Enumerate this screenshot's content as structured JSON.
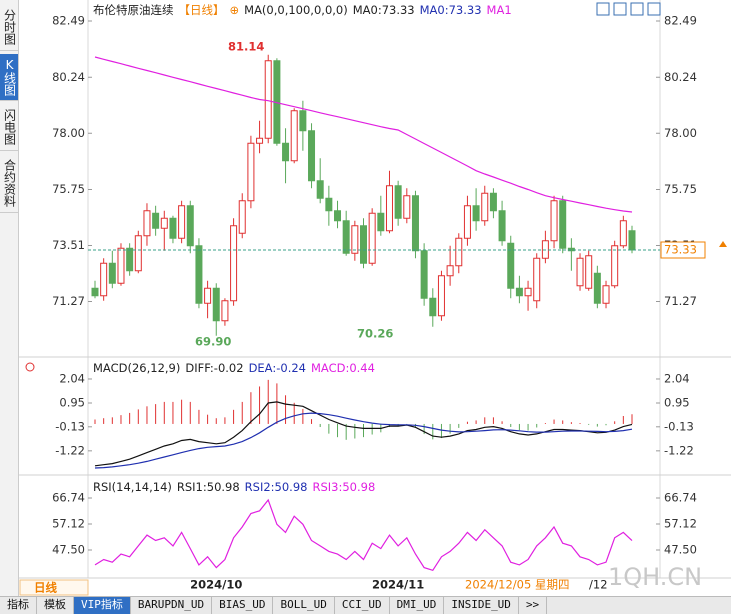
{
  "sidebar": [
    "分时图",
    "K线图",
    "闪电图",
    "合约资料"
  ],
  "tabs": [
    "指标",
    "模板",
    "VIP指标",
    "BARUPDN_UD",
    "BIAS_UD",
    "BOLL_UD",
    "CCI_UD",
    "DMI_UD",
    "INSIDE_UD",
    ">>"
  ],
  "period_label": "日线",
  "cursor_date": "2024/12/05 星期四",
  "cursor_tail": "/12",
  "watermark": "1QH.CN",
  "chart_data": [
    {
      "type": "candlestick",
      "header": [
        {
          "text": "布伦特原油连续",
          "color": "#222222"
        },
        {
          "text": "【日线】",
          "color": "#f08000"
        },
        {
          "text": "⊕",
          "color": "#f08000"
        },
        {
          "text": "MA(0,0,100,0,0,0)",
          "color": "#222222"
        },
        {
          "text": "MA0:73.33",
          "color": "#222222"
        },
        {
          "text": "MA0:73.33",
          "color": "#2030b0"
        },
        {
          "text": "MA1",
          "color": "#e020e0"
        }
      ],
      "categories": [
        null,
        null,
        null,
        null,
        null,
        null,
        null,
        null,
        null,
        null,
        null,
        null,
        null,
        null,
        "2024/10",
        null,
        null,
        null,
        null,
        null,
        null,
        null,
        null,
        null,
        null,
        null,
        null,
        null,
        null,
        null,
        null,
        null,
        null,
        null,
        null,
        "2024/11",
        null,
        null,
        null,
        null,
        null,
        null,
        null,
        null,
        null,
        null,
        null,
        null,
        null,
        null,
        null,
        null,
        null,
        null,
        null,
        null,
        null,
        null,
        null,
        null,
        null,
        null,
        null
      ],
      "candles": [
        [
          71.8,
          72.1,
          71.4,
          71.5
        ],
        [
          71.5,
          73.0,
          71.3,
          72.8
        ],
        [
          72.8,
          73.3,
          71.8,
          72.0
        ],
        [
          72.0,
          73.6,
          71.9,
          73.4
        ],
        [
          73.4,
          73.6,
          72.3,
          72.5
        ],
        [
          72.5,
          74.1,
          72.4,
          73.9
        ],
        [
          73.9,
          75.2,
          73.5,
          74.9
        ],
        [
          74.8,
          75.1,
          73.9,
          74.2
        ],
        [
          74.2,
          74.9,
          73.3,
          74.6
        ],
        [
          74.6,
          74.7,
          73.6,
          73.8
        ],
        [
          73.8,
          75.3,
          73.6,
          75.1
        ],
        [
          75.1,
          75.3,
          73.2,
          73.5
        ],
        [
          73.5,
          73.8,
          71.0,
          71.2
        ],
        [
          71.2,
          72.1,
          70.6,
          71.8
        ],
        [
          71.8,
          72.0,
          69.9,
          70.5
        ],
        [
          70.5,
          71.4,
          70.3,
          71.3
        ],
        [
          71.3,
          74.6,
          71.1,
          74.3
        ],
        [
          74.0,
          75.6,
          73.8,
          75.3
        ],
        [
          75.3,
          77.9,
          75.0,
          77.6
        ],
        [
          77.6,
          78.5,
          77.2,
          77.8
        ],
        [
          77.8,
          81.14,
          77.6,
          80.9
        ],
        [
          80.9,
          81.0,
          77.5,
          77.6
        ],
        [
          77.6,
          78.2,
          76.0,
          76.9
        ],
        [
          76.9,
          79.0,
          76.8,
          78.9
        ],
        [
          78.9,
          79.3,
          77.3,
          78.1
        ],
        [
          78.1,
          78.4,
          75.8,
          76.1
        ],
        [
          76.1,
          77.0,
          75.2,
          75.4
        ],
        [
          75.4,
          75.9,
          74.3,
          74.9
        ],
        [
          74.9,
          75.3,
          74.2,
          74.5
        ],
        [
          74.5,
          74.9,
          73.1,
          73.2
        ],
        [
          73.2,
          74.5,
          72.9,
          74.3
        ],
        [
          74.3,
          74.6,
          72.6,
          72.8
        ],
        [
          72.8,
          75.0,
          72.7,
          74.8
        ],
        [
          74.8,
          75.5,
          73.9,
          74.1
        ],
        [
          74.1,
          76.5,
          74.0,
          75.9
        ],
        [
          75.9,
          76.1,
          74.3,
          74.6
        ],
        [
          74.6,
          75.8,
          74.4,
          75.5
        ],
        [
          75.5,
          75.7,
          73.0,
          73.3
        ],
        [
          73.3,
          73.6,
          71.1,
          71.4
        ],
        [
          71.4,
          71.8,
          70.26,
          70.7
        ],
        [
          70.7,
          72.5,
          70.5,
          72.3
        ],
        [
          72.3,
          73.5,
          71.9,
          72.7
        ],
        [
          72.7,
          74.0,
          72.4,
          73.8
        ],
        [
          73.8,
          75.5,
          73.5,
          75.1
        ],
        [
          75.1,
          75.8,
          74.1,
          74.5
        ],
        [
          74.5,
          75.9,
          74.3,
          75.6
        ],
        [
          75.6,
          75.8,
          74.6,
          74.9
        ],
        [
          74.9,
          75.3,
          73.5,
          73.7
        ],
        [
          73.6,
          73.9,
          71.4,
          71.8
        ],
        [
          71.8,
          72.3,
          71.2,
          71.5
        ],
        [
          71.5,
          72.1,
          70.9,
          71.8
        ],
        [
          71.3,
          73.2,
          71.0,
          73.0
        ],
        [
          73.0,
          74.1,
          72.8,
          73.7
        ],
        [
          73.7,
          75.5,
          73.4,
          75.3
        ],
        [
          75.3,
          75.5,
          73.2,
          73.4
        ],
        [
          73.4,
          73.8,
          72.5,
          73.3
        ],
        [
          71.9,
          73.2,
          71.7,
          73.0
        ],
        [
          71.8,
          73.3,
          71.7,
          73.1
        ],
        [
          72.4,
          72.7,
          71.0,
          71.2
        ],
        [
          71.2,
          72.1,
          71.0,
          71.9
        ],
        [
          71.9,
          73.7,
          71.8,
          73.5
        ],
        [
          73.5,
          74.7,
          73.4,
          74.5
        ],
        [
          74.1,
          74.3,
          73.2,
          73.33
        ]
      ],
      "up_color": "#e03030",
      "down_color": "#5aa85a",
      "series": [
        {
          "color": "#e020e0",
          "values": [
            81.05,
            80.96,
            80.87,
            80.78,
            80.69,
            80.6,
            80.51,
            80.42,
            80.33,
            80.24,
            80.15,
            80.06,
            79.97,
            79.88,
            79.79,
            79.7,
            79.61,
            79.52,
            79.43,
            79.35,
            79.3,
            79.22,
            79.14,
            79.06,
            78.98,
            78.9,
            78.82,
            78.74,
            78.66,
            78.58,
            78.5,
            78.42,
            78.34,
            78.26,
            78.19,
            78.13,
            77.95,
            77.77,
            77.59,
            77.41,
            77.23,
            77.05,
            76.87,
            76.69,
            76.5,
            76.37,
            76.25,
            76.12,
            76.0,
            75.87,
            75.75,
            75.62,
            75.5,
            75.42,
            75.35,
            75.28,
            75.21,
            75.14,
            75.07,
            75.0,
            74.94,
            74.89,
            74.85
          ]
        }
      ],
      "last_price": 73.33,
      "last_price_color": "#f08000",
      "annotations": [
        "81.14",
        "69.90",
        "70.26"
      ],
      "ylim": [
        69.13,
        82.85
      ],
      "yticks": [
        82.49,
        80.24,
        {
          "value": 78,
          "label": "78.00"
        },
        75.75,
        73.51,
        71.27
      ],
      "grid": false
    },
    {
      "type": "macd",
      "header": [
        {
          "text": "MACD(26,12,9)",
          "color": "#222222"
        },
        {
          "text": "DIFF:-0.02",
          "color": "#222222"
        },
        {
          "text": "DEA:-0.24",
          "color": "#2030b0"
        },
        {
          "text": "MACD:0.44",
          "color": "#e020e0"
        }
      ],
      "series": [
        {
          "color": "#111111",
          "values": [
            -1.9,
            -1.85,
            -1.8,
            -1.7,
            -1.6,
            -1.45,
            -1.3,
            -1.15,
            -1.0,
            -0.9,
            -0.75,
            -0.7,
            -0.8,
            -0.85,
            -0.9,
            -0.85,
            -0.6,
            -0.3,
            0.1,
            0.45,
            0.95,
            1.0,
            0.9,
            0.85,
            0.8,
            0.6,
            0.4,
            0.2,
            0.05,
            -0.1,
            -0.15,
            -0.2,
            -0.2,
            -0.2,
            -0.1,
            -0.1,
            -0.05,
            -0.15,
            -0.35,
            -0.55,
            -0.6,
            -0.55,
            -0.45,
            -0.3,
            -0.25,
            -0.15,
            -0.12,
            -0.2,
            -0.35,
            -0.45,
            -0.5,
            -0.45,
            -0.35,
            -0.25,
            -0.25,
            -0.28,
            -0.3,
            -0.35,
            -0.4,
            -0.38,
            -0.28,
            -0.12,
            -0.02
          ]
        },
        {
          "color": "#2030b0",
          "values": [
            -2.0,
            -1.98,
            -1.95,
            -1.9,
            -1.85,
            -1.78,
            -1.7,
            -1.6,
            -1.5,
            -1.4,
            -1.3,
            -1.2,
            -1.12,
            -1.06,
            -1.03,
            -1.0,
            -0.92,
            -0.8,
            -0.62,
            -0.4,
            -0.15,
            0.08,
            0.25,
            0.37,
            0.46,
            0.49,
            0.47,
            0.42,
            0.35,
            0.26,
            0.18,
            0.1,
            0.04,
            -0.01,
            -0.03,
            -0.04,
            -0.04,
            -0.06,
            -0.12,
            -0.2,
            -0.28,
            -0.33,
            -0.36,
            -0.35,
            -0.33,
            -0.3,
            -0.27,
            -0.26,
            -0.28,
            -0.31,
            -0.35,
            -0.37,
            -0.37,
            -0.35,
            -0.33,
            -0.32,
            -0.32,
            -0.33,
            -0.34,
            -0.35,
            -0.34,
            -0.3,
            -0.24
          ]
        }
      ],
      "histogram": [
        0.2,
        0.26,
        0.3,
        0.4,
        0.5,
        0.66,
        0.8,
        0.9,
        1.0,
        1.0,
        1.1,
        1.0,
        0.64,
        0.42,
        0.26,
        0.3,
        0.64,
        1.0,
        1.44,
        1.7,
        2.0,
        1.84,
        1.3,
        0.96,
        0.68,
        0.22,
        -0.14,
        -0.44,
        -0.6,
        -0.72,
        -0.66,
        -0.6,
        -0.48,
        -0.38,
        -0.14,
        -0.12,
        -0.02,
        -0.18,
        -0.46,
        -0.7,
        -0.64,
        -0.44,
        -0.18,
        0.1,
        0.16,
        0.3,
        0.3,
        0.12,
        -0.14,
        -0.28,
        -0.3,
        -0.16,
        0.04,
        0.2,
        0.16,
        0.08,
        0.04,
        -0.04,
        -0.12,
        -0.06,
        0.12,
        0.36,
        0.44
      ],
      "up_color": "#e03030",
      "down_color": "#5aa85a",
      "ylim": [
        -2.18,
        2.81
      ],
      "yticks": [
        2.04,
        0.95,
        -0.13,
        -1.22
      ]
    },
    {
      "type": "line",
      "header": [
        {
          "text": "RSI(14,14,14)",
          "color": "#222222"
        },
        {
          "text": "RSI1:50.98",
          "color": "#222222"
        },
        {
          "text": "RSI2:50.98",
          "color": "#2030b0"
        },
        {
          "text": "RSI3:50.98",
          "color": "#e020e0"
        }
      ],
      "series": [
        {
          "color": "#e020e0",
          "values": [
            42,
            44,
            43,
            46,
            45,
            49,
            53,
            51,
            52,
            49,
            54,
            48,
            42,
            45,
            41,
            44,
            52,
            56,
            61,
            62,
            66,
            57,
            54,
            60,
            57,
            51,
            49,
            47,
            46,
            44,
            47,
            44,
            50,
            48,
            53,
            49,
            52,
            46,
            41,
            40,
            45,
            47,
            50,
            54,
            51,
            55,
            52,
            49,
            43,
            42,
            44,
            49,
            52,
            56,
            50,
            49,
            45,
            44,
            42,
            43,
            52,
            54,
            50.98
          ]
        }
      ],
      "ylim": [
        37.51,
        74.14
      ],
      "yticks": [
        66.74,
        57.12,
        {
          "value": 47.5,
          "label": "47.50"
        }
      ]
    }
  ]
}
